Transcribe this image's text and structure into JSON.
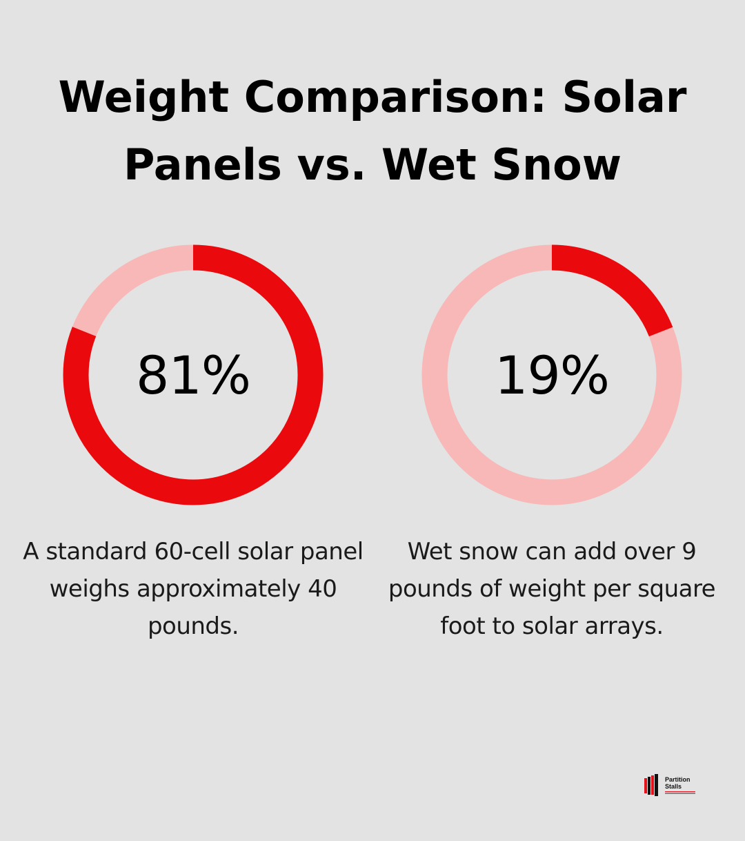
{
  "title": {
    "line1": "Weight Comparison: Solar",
    "line2": "Panels vs. Wet Snow"
  },
  "colors": {
    "background": "#e2e3e2",
    "accent": "#ea0a0d",
    "track": "#f7b8b7"
  },
  "chart_data": [
    {
      "type": "pie",
      "variant": "donut",
      "value": 81,
      "value_label": "81%",
      "description": "A standard 60-cell solar panel weighs approximately 40 pounds."
    },
    {
      "type": "pie",
      "variant": "donut",
      "value": 19,
      "value_label": "19%",
      "description": "Wet snow can add over 9 pounds of weight per square foot to solar arrays."
    }
  ],
  "logo": {
    "line1": "Partition",
    "line2": "Stalls",
    "icon": "partition-stalls-logo-icon"
  }
}
